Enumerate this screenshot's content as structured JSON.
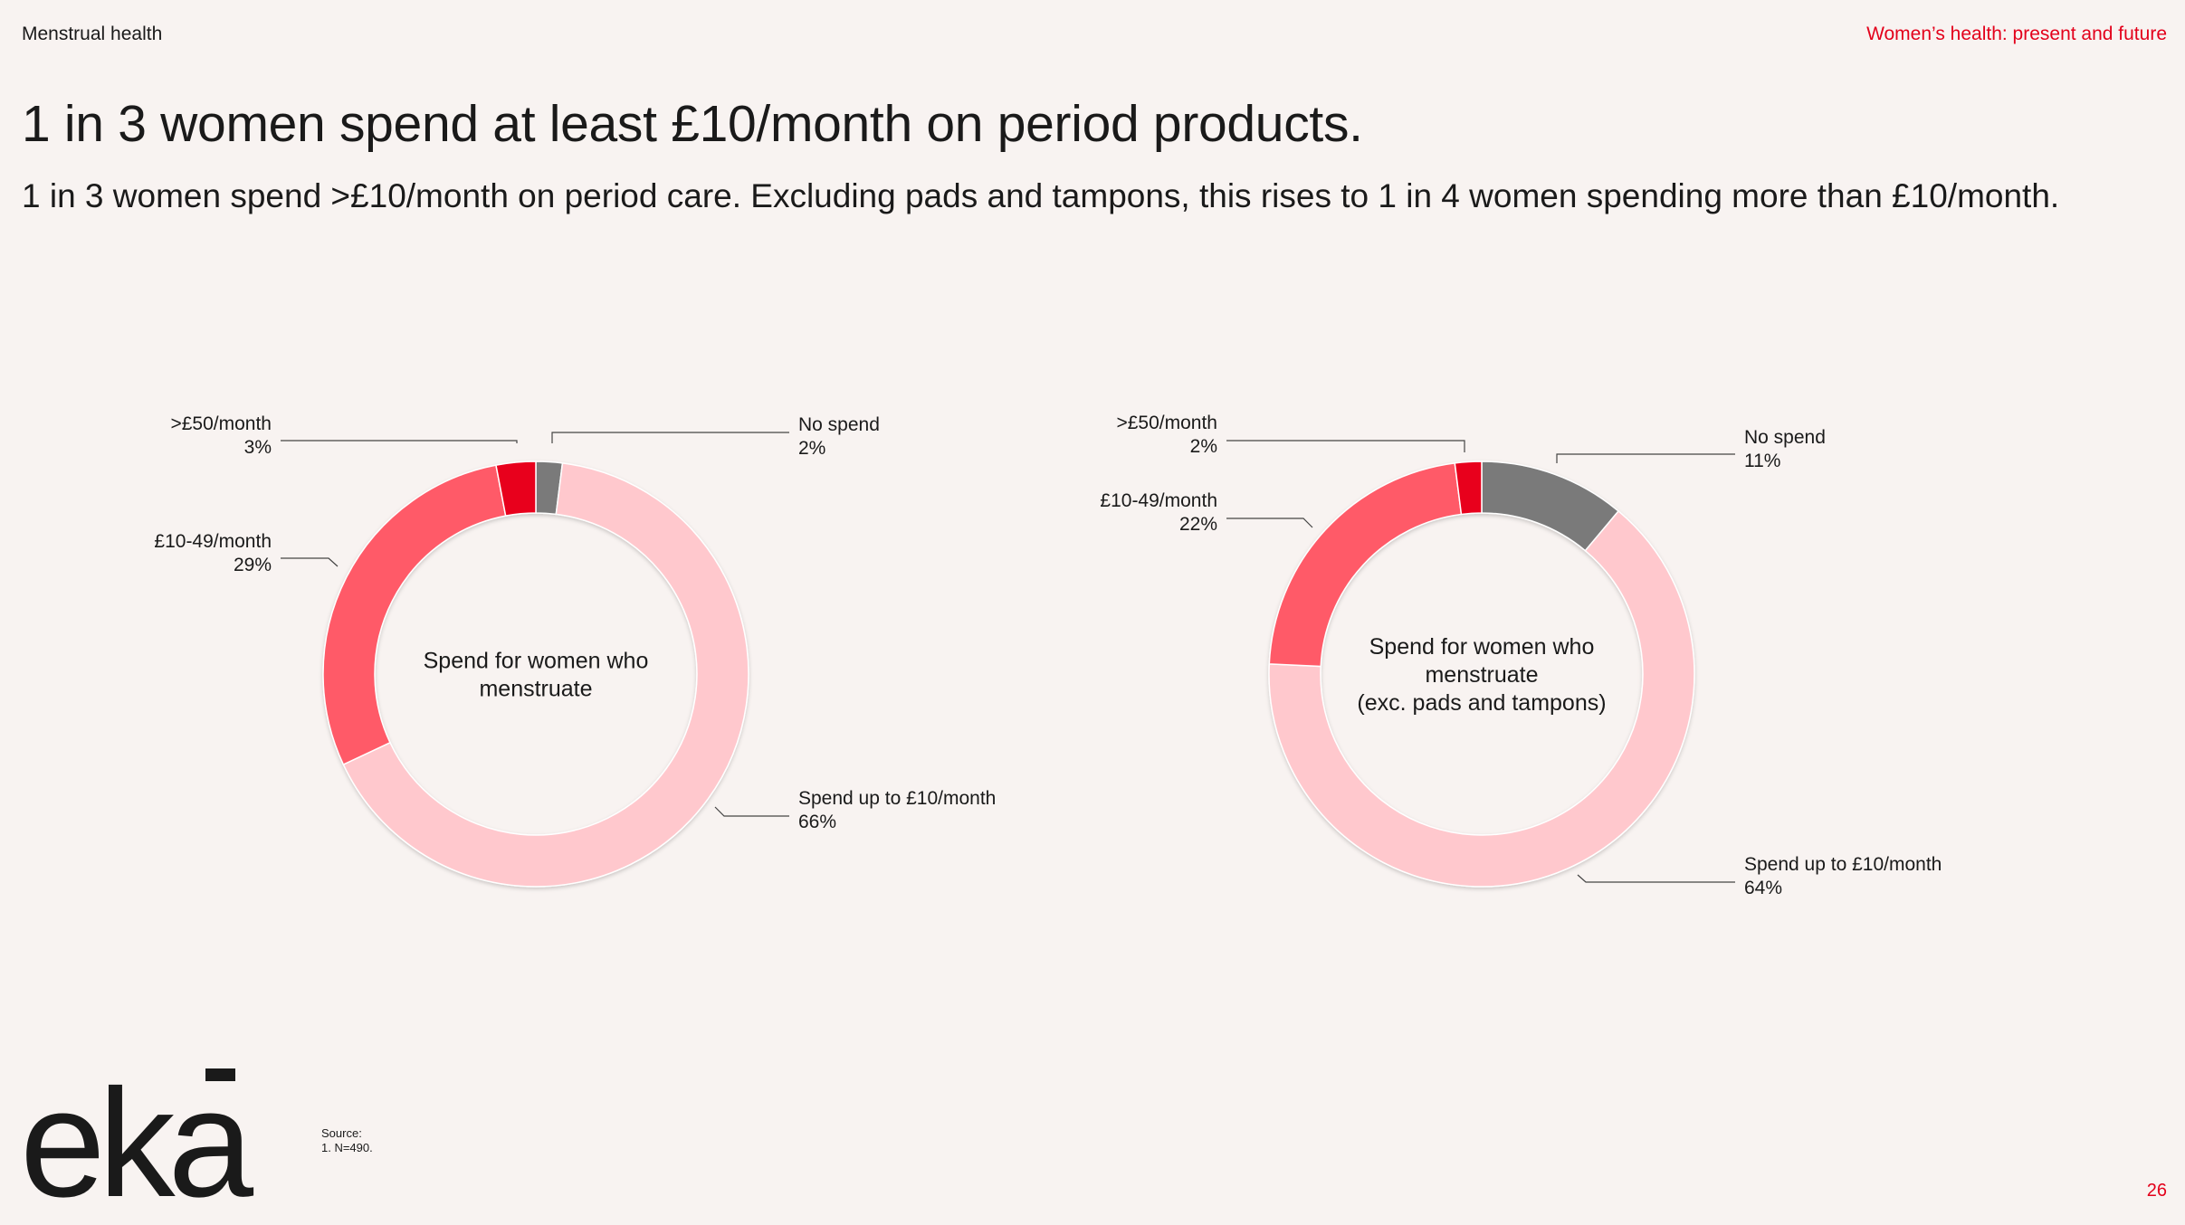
{
  "header": {
    "section": "Menstrual health",
    "deck_title": "Women’s health: present and future"
  },
  "headline": "1 in 3 women spend at least £10/month on period products.",
  "subheadline": "1 in 3 women spend >£10/month on period care. Excluding pads and tampons, this rises to 1 in 4 women spending more than £10/month.",
  "colors": {
    "no_spend": "#7a7a7a",
    "up_to_10": "#ffc8cd",
    "ten_to_49": "#ff5a67",
    "over_50": "#e8001c",
    "accent": "#e3001b"
  },
  "chart_data": [
    {
      "type": "pie",
      "variant": "donut",
      "title": "Spend for women who menstruate",
      "title_lines": [
        "Spend for women who",
        "menstruate"
      ],
      "categories": [
        "No spend",
        "Spend up to £10/month",
        "£10-49/month",
        ">£50/month"
      ],
      "values": [
        2,
        66,
        29,
        3
      ],
      "value_labels": [
        "2%",
        "66%",
        "29%",
        "3%"
      ],
      "start": "top, clockwise"
    },
    {
      "type": "pie",
      "variant": "donut",
      "title": "Spend for women who menstruate (exc. pads and tampons)",
      "title_lines": [
        "Spend for women who",
        "menstruate",
        "(exc. pads and tampons)"
      ],
      "categories": [
        "No spend",
        "Spend up to £10/month",
        "£10-49/month",
        ">£50/month"
      ],
      "values": [
        11,
        64,
        22,
        2
      ],
      "value_labels": [
        "11%",
        "64%",
        "22%",
        "2%"
      ],
      "start": "top, clockwise"
    }
  ],
  "footer": {
    "logo_text": "eka",
    "source_title": "Source:",
    "source_note": "1.    N=490.",
    "page_number": "26"
  }
}
